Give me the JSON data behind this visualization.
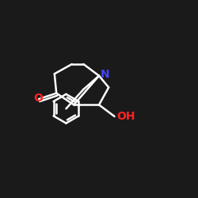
{
  "bg_color": "#1a1a1a",
  "bond_color": "#ffffff",
  "N_color": "#4444ff",
  "O_color": "#ff2222",
  "N_label": "N",
  "O_label": "O",
  "OH_label": "OH",
  "font_size": 10,
  "linewidth": 1.8,
  "figsize": [
    2.5,
    2.5
  ],
  "dpi": 100
}
